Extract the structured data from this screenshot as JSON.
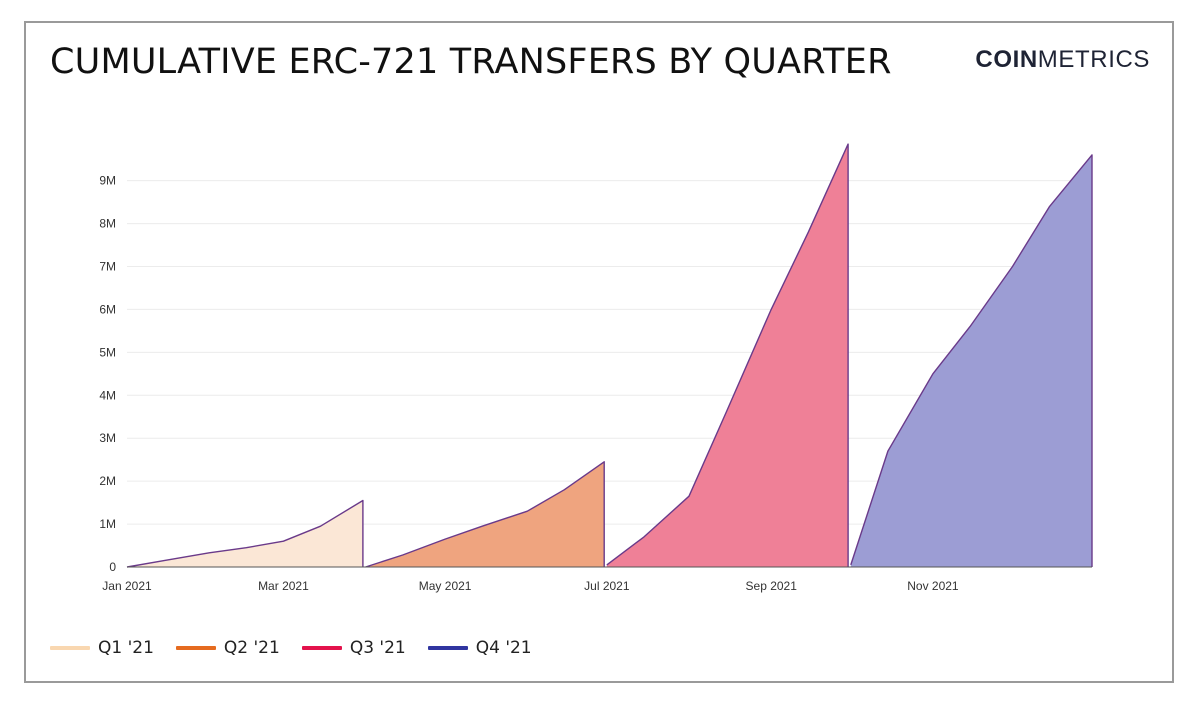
{
  "header": {
    "title": "CUMULATIVE ERC-721 TRANSFERS BY QUARTER",
    "brand_bold": "COIN",
    "brand_light": "METRICS"
  },
  "colors": {
    "grid": "#ececec",
    "axis": "#555555",
    "tick_text": "#333333",
    "outline": "#6a3a8a"
  },
  "chart_data": {
    "type": "area",
    "title": "CUMULATIVE ERC-721 TRANSFERS BY QUARTER",
    "xlabel": "",
    "ylabel": "",
    "xlim": [
      "2021-01-01",
      "2021-12-31"
    ],
    "ylim": [
      0,
      9900000
    ],
    "grid": true,
    "legend_position": "bottom-left",
    "x_ticks": [
      {
        "date": "2021-01-01",
        "label": "Jan 2021"
      },
      {
        "date": "2021-03-01",
        "label": "Mar 2021"
      },
      {
        "date": "2021-05-01",
        "label": "May 2021"
      },
      {
        "date": "2021-07-01",
        "label": "Jul 2021"
      },
      {
        "date": "2021-09-01",
        "label": "Sep 2021"
      },
      {
        "date": "2021-11-01",
        "label": "Nov 2021"
      }
    ],
    "y_ticks": [
      {
        "value": 0,
        "label": "0"
      },
      {
        "value": 1000000,
        "label": "1M"
      },
      {
        "value": 2000000,
        "label": "2M"
      },
      {
        "value": 3000000,
        "label": "3M"
      },
      {
        "value": 4000000,
        "label": "4M"
      },
      {
        "value": 5000000,
        "label": "5M"
      },
      {
        "value": 6000000,
        "label": "6M"
      },
      {
        "value": 7000000,
        "label": "7M"
      },
      {
        "value": 8000000,
        "label": "8M"
      },
      {
        "value": 9000000,
        "label": "9M"
      }
    ],
    "series": [
      {
        "name": "Q1 '21",
        "line_color": "#f9d7b0",
        "fill_color": "#fbe7d6",
        "points": [
          [
            "2021-01-01",
            0
          ],
          [
            "2021-01-15",
            150000
          ],
          [
            "2021-02-01",
            330000
          ],
          [
            "2021-02-15",
            450000
          ],
          [
            "2021-03-01",
            600000
          ],
          [
            "2021-03-15",
            950000
          ],
          [
            "2021-03-31",
            1550000
          ]
        ]
      },
      {
        "name": "Q2 '21",
        "line_color": "#e56b1f",
        "fill_color": "#efa47f",
        "points": [
          [
            "2021-04-01",
            0
          ],
          [
            "2021-04-15",
            280000
          ],
          [
            "2021-05-01",
            650000
          ],
          [
            "2021-05-15",
            950000
          ],
          [
            "2021-06-01",
            1300000
          ],
          [
            "2021-06-15",
            1800000
          ],
          [
            "2021-06-30",
            2450000
          ]
        ]
      },
      {
        "name": "Q3 '21",
        "line_color": "#e3124c",
        "fill_color": "#ef8097",
        "points": [
          [
            "2021-07-01",
            50000
          ],
          [
            "2021-07-15",
            700000
          ],
          [
            "2021-08-01",
            1650000
          ],
          [
            "2021-08-15",
            3600000
          ],
          [
            "2021-09-01",
            6000000
          ],
          [
            "2021-09-15",
            7800000
          ],
          [
            "2021-09-30",
            9850000
          ]
        ]
      },
      {
        "name": "Q4 '21",
        "line_color": "#3035a0",
        "fill_color": "#9c9dd4",
        "points": [
          [
            "2021-10-01",
            50000
          ],
          [
            "2021-10-15",
            2700000
          ],
          [
            "2021-11-01",
            4500000
          ],
          [
            "2021-11-15",
            5600000
          ],
          [
            "2021-12-01",
            7000000
          ],
          [
            "2021-12-15",
            8400000
          ],
          [
            "2021-12-31",
            9600000
          ]
        ]
      }
    ]
  }
}
